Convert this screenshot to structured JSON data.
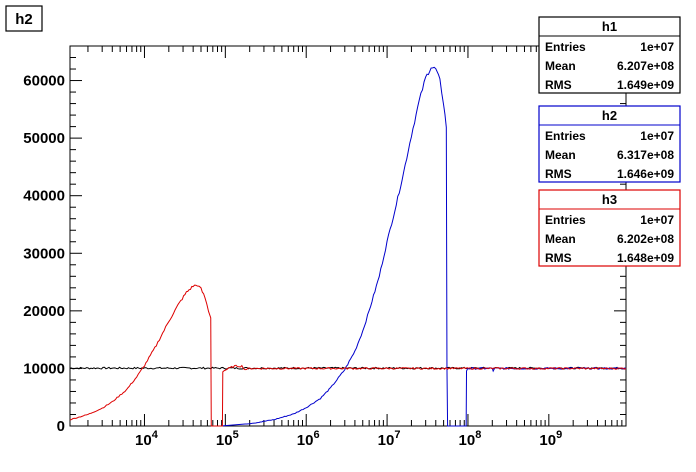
{
  "chart_data": {
    "type": "line",
    "title": "h2",
    "x_scale": "log",
    "xlim": [
      1200,
      9000000000
    ],
    "ylim": [
      0,
      66000
    ],
    "y_ticks": [
      0,
      10000,
      20000,
      30000,
      40000,
      50000,
      60000
    ],
    "x_ticks": [
      {
        "value": 10000,
        "base": "10",
        "exp": "4"
      },
      {
        "value": 100000,
        "base": "10",
        "exp": "5"
      },
      {
        "value": 1000000,
        "base": "10",
        "exp": "6"
      },
      {
        "value": 10000000,
        "base": "10",
        "exp": "7"
      },
      {
        "value": 100000000,
        "base": "10",
        "exp": "8"
      },
      {
        "value": 1000000000,
        "base": "10",
        "exp": "9"
      }
    ],
    "series": [
      {
        "name": "h1",
        "color": "#000000",
        "points": [
          [
            1200,
            10050
          ],
          [
            9000000000,
            10050
          ]
        ]
      },
      {
        "name": "h2",
        "color": "#0000cc",
        "points": [
          [
            88000,
            0
          ],
          [
            200000,
            400
          ],
          [
            400000,
            1100
          ],
          [
            700000,
            2100
          ],
          [
            1000000,
            3200
          ],
          [
            1500000,
            4800
          ],
          [
            2000000,
            6600
          ],
          [
            3000000,
            9800
          ],
          [
            4000000,
            13000
          ],
          [
            5000000,
            16500
          ],
          [
            6000000,
            20000
          ],
          [
            8000000,
            26000
          ],
          [
            10000000,
            32000
          ],
          [
            13000000,
            38500
          ],
          [
            16000000,
            44000
          ],
          [
            20000000,
            50500
          ],
          [
            25000000,
            56500
          ],
          [
            30000000,
            60500
          ],
          [
            35000000,
            62300
          ],
          [
            40000000,
            62000
          ],
          [
            45000000,
            60000
          ],
          [
            50000000,
            56000
          ],
          [
            54000000,
            52000
          ],
          [
            55000000,
            10000
          ],
          [
            56000000,
            0
          ],
          [
            95000000,
            0
          ],
          [
            96000000,
            9600
          ],
          [
            99000000,
            10000
          ],
          [
            200000000,
            10000
          ],
          [
            205000000,
            9600
          ],
          [
            215000000,
            10000
          ],
          [
            9000000000,
            10000
          ]
        ]
      },
      {
        "name": "h3",
        "color": "#dd0000",
        "points": [
          [
            1200,
            1100
          ],
          [
            2000,
            2000
          ],
          [
            3000,
            3100
          ],
          [
            4000,
            4200
          ],
          [
            6000,
            6300
          ],
          [
            8000,
            8500
          ],
          [
            10000,
            10500
          ],
          [
            14000,
            14000
          ],
          [
            20000,
            18200
          ],
          [
            26000,
            21000
          ],
          [
            33000,
            23200
          ],
          [
            40000,
            24300
          ],
          [
            45000,
            24500
          ],
          [
            50000,
            23800
          ],
          [
            56000,
            22300
          ],
          [
            62000,
            20000
          ],
          [
            66000,
            18800
          ],
          [
            67000,
            0
          ],
          [
            92000,
            0
          ],
          [
            93000,
            9500
          ],
          [
            110000,
            10000
          ],
          [
            130000,
            10400
          ],
          [
            160000,
            10400
          ],
          [
            175000,
            9800
          ],
          [
            200000,
            10000
          ],
          [
            9000000000,
            10000
          ]
        ]
      }
    ],
    "legends": [
      {
        "title": "h1",
        "color": "#000000",
        "rows": [
          [
            "Entries",
            "1e+07"
          ],
          [
            "Mean",
            "6.207e+08"
          ],
          [
            "RMS",
            "1.649e+09"
          ]
        ]
      },
      {
        "title": "h2",
        "color": "#0000cc",
        "rows": [
          [
            "Entries",
            "1e+07"
          ],
          [
            "Mean",
            "6.317e+08"
          ],
          [
            "RMS",
            "1.646e+09"
          ]
        ]
      },
      {
        "title": "h3",
        "color": "#dd0000",
        "rows": [
          [
            "Entries",
            "1e+07"
          ],
          [
            "Mean",
            "6.202e+08"
          ],
          [
            "RMS",
            "1.648e+09"
          ]
        ]
      }
    ]
  }
}
